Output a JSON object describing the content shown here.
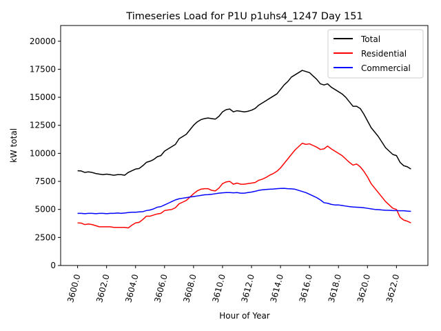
{
  "chart_data": {
    "type": "line",
    "title": "Timeseries Load for P1U p1uhs4_1247  Day 151",
    "xlabel": "Hour of Year",
    "ylabel": "kW total",
    "xlim": [
      3598.83,
      3624.17
    ],
    "ylim": [
      0,
      21400
    ],
    "xticks": [
      3600,
      3602,
      3604,
      3606,
      3608,
      3610,
      3612,
      3614,
      3616,
      3618,
      3620,
      3622
    ],
    "xtick_labels": [
      "3600.0",
      "3602.0",
      "3604.0",
      "3606.0",
      "3608.0",
      "3610.0",
      "3612.0",
      "3614.0",
      "3616.0",
      "3618.0",
      "3620.0",
      "3622.0"
    ],
    "yticks": [
      0,
      2500,
      5000,
      7500,
      10000,
      12500,
      15000,
      17500,
      20000
    ],
    "ytick_labels": [
      "0",
      "2500",
      "5000",
      "7500",
      "10000",
      "12500",
      "15000",
      "17500",
      "20000"
    ],
    "legend_position": "top-right",
    "x_start": 3600,
    "x_step": 0.25,
    "series": [
      {
        "name": "Total",
        "color": "#000000",
        "values": [
          8450,
          8430,
          8300,
          8350,
          8300,
          8200,
          8150,
          8100,
          8150,
          8100,
          8050,
          8100,
          8100,
          8050,
          8300,
          8450,
          8600,
          8650,
          8900,
          9200,
          9300,
          9450,
          9700,
          9800,
          10200,
          10400,
          10600,
          10800,
          11300,
          11500,
          11700,
          12100,
          12500,
          12800,
          13000,
          13100,
          13150,
          13100,
          13050,
          13300,
          13700,
          13900,
          13950,
          13700,
          13800,
          13750,
          13700,
          13750,
          13850,
          14000,
          14300,
          14500,
          14700,
          14900,
          15100,
          15300,
          15700,
          16100,
          16400,
          16800,
          17000,
          17200,
          17400,
          17300,
          17200,
          16900,
          16600,
          16200,
          16100,
          16200,
          15900,
          15700,
          15500,
          15300,
          15000,
          14600,
          14200,
          14200,
          14000,
          13500,
          12900,
          12300,
          11900,
          11500,
          11000,
          10500,
          10200,
          9900,
          9800,
          9200,
          8900,
          8800,
          8600
        ],
        "legend_label": "Total"
      },
      {
        "name": "Residential",
        "color": "#ff0000",
        "values": [
          3800,
          3780,
          3650,
          3700,
          3650,
          3550,
          3450,
          3450,
          3450,
          3450,
          3400,
          3400,
          3400,
          3400,
          3350,
          3600,
          3800,
          3850,
          4100,
          4400,
          4400,
          4500,
          4600,
          4650,
          4900,
          4950,
          5000,
          5150,
          5500,
          5650,
          5800,
          6100,
          6400,
          6650,
          6800,
          6850,
          6850,
          6700,
          6650,
          6900,
          7300,
          7450,
          7500,
          7250,
          7350,
          7250,
          7250,
          7300,
          7350,
          7400,
          7600,
          7700,
          7850,
          8050,
          8200,
          8400,
          8700,
          9100,
          9500,
          9900,
          10300,
          10600,
          10900,
          10800,
          10850,
          10700,
          10550,
          10350,
          10400,
          10650,
          10400,
          10200,
          10000,
          9800,
          9500,
          9200,
          8950,
          9050,
          8800,
          8400,
          7900,
          7300,
          6900,
          6500,
          6100,
          5700,
          5400,
          5100,
          5000,
          4300,
          4050,
          3950,
          3800
        ],
        "legend_label": "Residential"
      },
      {
        "name": "Commercial",
        "color": "#0000ff",
        "values": [
          4650,
          4650,
          4620,
          4650,
          4650,
          4620,
          4650,
          4650,
          4620,
          4650,
          4650,
          4680,
          4650,
          4680,
          4720,
          4750,
          4750,
          4780,
          4800,
          4900,
          4950,
          5050,
          5200,
          5250,
          5400,
          5550,
          5700,
          5850,
          5950,
          6000,
          6050,
          6100,
          6150,
          6200,
          6250,
          6300,
          6320,
          6350,
          6400,
          6450,
          6480,
          6500,
          6500,
          6480,
          6500,
          6450,
          6450,
          6500,
          6550,
          6620,
          6700,
          6750,
          6780,
          6800,
          6820,
          6850,
          6870,
          6880,
          6850,
          6830,
          6800,
          6700,
          6600,
          6500,
          6350,
          6200,
          6050,
          5850,
          5600,
          5550,
          5450,
          5400,
          5400,
          5350,
          5300,
          5250,
          5220,
          5200,
          5180,
          5150,
          5100,
          5050,
          5000,
          4980,
          4950,
          4930,
          4920,
          4900,
          4900,
          4880,
          4880,
          4850,
          4830
        ],
        "legend_label": "Commercial"
      }
    ]
  }
}
